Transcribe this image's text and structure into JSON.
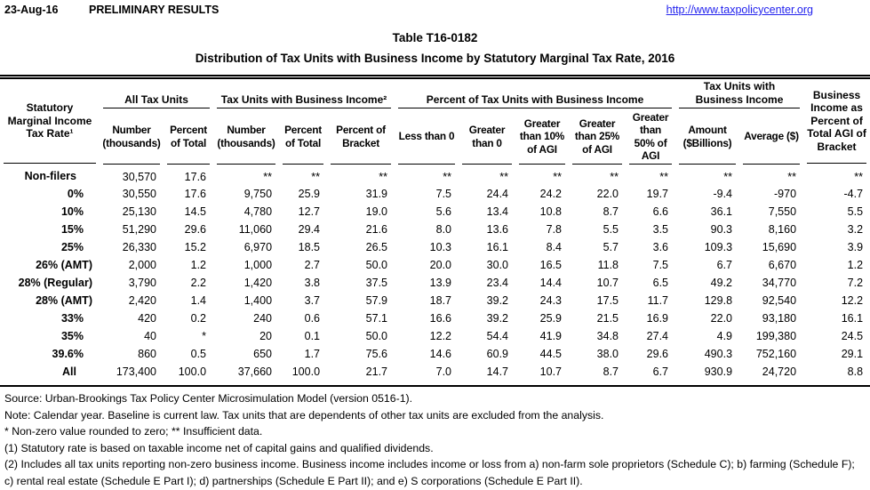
{
  "meta": {
    "date": "23-Aug-16",
    "status": "PRELIMINARY RESULTS",
    "link": "http://www.taxpolicycenter.org"
  },
  "title": "Table T16-0182",
  "subtitle": "Distribution of Tax Units with Business Income by Statutory Marginal Tax Rate, 2016",
  "colors": {
    "link_blue": "#2222ee",
    "text": "#000000",
    "background": "#ffffff"
  },
  "table": {
    "row_header": "Statutory Marginal Income Tax Rate¹",
    "groups": [
      {
        "label": "All Tax Units",
        "span": 2
      },
      {
        "label": "Tax Units with Business Income²",
        "span": 3
      },
      {
        "label": "Percent of Tax Units with Business Income",
        "span": 5
      },
      {
        "label": "Tax Units with Business Income",
        "span": 2
      }
    ],
    "columns": [
      "Number (thousands)",
      "Percent of Total",
      "Number (thousands)",
      "Percent of Total",
      "Percent of Bracket",
      "Less than 0",
      "Greater than 0",
      "Greater than 10% of AGI",
      "Greater than 25% of AGI",
      "Greater than 50% of AGI",
      "Amount ($Billions)",
      "Average ($)"
    ],
    "last_column": "Business Income as Percent of Total AGI of Bracket",
    "rows": [
      {
        "label": "Non-filers",
        "values": [
          "30,570",
          "17.6",
          "**",
          "**",
          "**",
          "**",
          "**",
          "**",
          "**",
          "**",
          "**",
          "**",
          "**"
        ]
      },
      {
        "label": "0%",
        "values": [
          "30,550",
          "17.6",
          "9,750",
          "25.9",
          "31.9",
          "7.5",
          "24.4",
          "24.2",
          "22.0",
          "19.7",
          "-9.4",
          "-970",
          "-4.7"
        ]
      },
      {
        "label": "10%",
        "values": [
          "25,130",
          "14.5",
          "4,780",
          "12.7",
          "19.0",
          "5.6",
          "13.4",
          "10.8",
          "8.7",
          "6.6",
          "36.1",
          "7,550",
          "5.5"
        ]
      },
      {
        "label": "15%",
        "values": [
          "51,290",
          "29.6",
          "11,060",
          "29.4",
          "21.6",
          "8.0",
          "13.6",
          "7.8",
          "5.5",
          "3.5",
          "90.3",
          "8,160",
          "3.2"
        ]
      },
      {
        "label": "25%",
        "values": [
          "26,330",
          "15.2",
          "6,970",
          "18.5",
          "26.5",
          "10.3",
          "16.1",
          "8.4",
          "5.7",
          "3.6",
          "109.3",
          "15,690",
          "3.9"
        ]
      },
      {
        "label": "26% (AMT)",
        "values": [
          "2,000",
          "1.2",
          "1,000",
          "2.7",
          "50.0",
          "20.0",
          "30.0",
          "16.5",
          "11.8",
          "7.5",
          "6.7",
          "6,670",
          "1.2"
        ]
      },
      {
        "label": "28% (Regular)",
        "values": [
          "3,790",
          "2.2",
          "1,420",
          "3.8",
          "37.5",
          "13.9",
          "23.4",
          "14.4",
          "10.7",
          "6.5",
          "49.2",
          "34,770",
          "7.2"
        ]
      },
      {
        "label": "28% (AMT)",
        "values": [
          "2,420",
          "1.4",
          "1,400",
          "3.7",
          "57.9",
          "18.7",
          "39.2",
          "24.3",
          "17.5",
          "11.7",
          "129.8",
          "92,540",
          "12.2"
        ]
      },
      {
        "label": "33%",
        "values": [
          "420",
          "0.2",
          "240",
          "0.6",
          "57.1",
          "16.6",
          "39.2",
          "25.9",
          "21.5",
          "16.9",
          "22.0",
          "93,180",
          "16.1"
        ]
      },
      {
        "label": "35%",
        "values": [
          "40",
          "*",
          "20",
          "0.1",
          "50.0",
          "12.2",
          "54.4",
          "41.9",
          "34.8",
          "27.4",
          "4.9",
          "199,380",
          "24.5"
        ]
      },
      {
        "label": "39.6%",
        "values": [
          "860",
          "0.5",
          "650",
          "1.7",
          "75.6",
          "14.6",
          "60.9",
          "44.5",
          "38.0",
          "29.6",
          "490.3",
          "752,160",
          "29.1"
        ]
      },
      {
        "label": "All",
        "values": [
          "173,400",
          "100.0",
          "37,660",
          "100.0",
          "21.7",
          "7.0",
          "14.7",
          "10.7",
          "8.7",
          "6.7",
          "930.9",
          "24,720",
          "8.8"
        ]
      }
    ]
  },
  "notes": [
    "Source: Urban-Brookings Tax Policy Center Microsimulation Model (version 0516-1).",
    "Note: Calendar year. Baseline is current law. Tax units that are dependents of other tax units are excluded from the analysis.",
    "* Non-zero value rounded to zero; ** Insufficient data.",
    "(1) Statutory rate is based on taxable income net of capital gains and qualified dividends.",
    "(2) Includes all tax units reporting non-zero business income. Business income includes income or loss from a) non-farm sole proprietors (Schedule C); b) farming (Schedule F); c) rental real estate (Schedule E Part I); d) partnerships (Schedule E Part II); and e) S corporations (Schedule E Part II)."
  ]
}
